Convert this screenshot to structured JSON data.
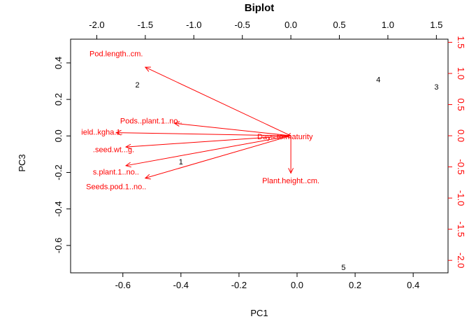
{
  "chart_data": {
    "type": "scatter",
    "title": "Biplot",
    "xlabel": "PC1",
    "ylabel": "PC3",
    "xlim": [
      -0.78,
      0.52
    ],
    "ylim": [
      -0.75,
      0.53
    ],
    "x_ticks": [
      "-0.6",
      "-0.4",
      "-0.2",
      "0.0",
      "0.2",
      "0.4"
    ],
    "y_ticks": [
      "-0.6",
      "-0.4",
      "-0.2",
      "0.0",
      "0.2",
      "0.4"
    ],
    "secondary_xlim": [
      -2.27,
      1.62
    ],
    "secondary_ylim": [
      -2.2,
      1.55
    ],
    "secondary_x_ticks": [
      "-2.0",
      "-1.5",
      "-1.0",
      "-0.5",
      "0.0",
      "0.5",
      "1.0",
      "1.5"
    ],
    "secondary_y_ticks": [
      "-2.0",
      "-1.5",
      "-1.0",
      "-0.5",
      "0.0",
      "0.5",
      "1.0",
      "1.5"
    ],
    "points": [
      {
        "label": "1",
        "x": -0.4,
        "y": -0.14
      },
      {
        "label": "2",
        "x": -0.55,
        "y": 0.28
      },
      {
        "label": "3",
        "x": 0.48,
        "y": 0.27
      },
      {
        "label": "4",
        "x": 0.28,
        "y": 0.31
      },
      {
        "label": "5",
        "x": 0.16,
        "y": -0.72
      }
    ],
    "vectors": [
      {
        "label": "Pod.length..cm.",
        "x": -1.5,
        "y": 1.1
      },
      {
        "label": "Pods..plant.1..no..",
        "x": -1.2,
        "y": 0.2
      },
      {
        "label": "ield..kgha.1.",
        "x": -1.8,
        "y": 0.05
      },
      {
        "label": ".seed.wt...g.",
        "x": -1.7,
        "y": -0.18
      },
      {
        "label": "s.plant.1..no..",
        "x": -1.7,
        "y": -0.48
      },
      {
        "label": "Seeds.pod.1..no..",
        "x": -1.5,
        "y": -0.68
      },
      {
        "label": "Days.to.maturity",
        "x": -0.05,
        "y": -0.01
      },
      {
        "label": "Plant.height..cm.",
        "x": 0.0,
        "y": -0.6
      }
    ],
    "colors": {
      "points": "#000000",
      "vectors": "#ff0000"
    }
  }
}
